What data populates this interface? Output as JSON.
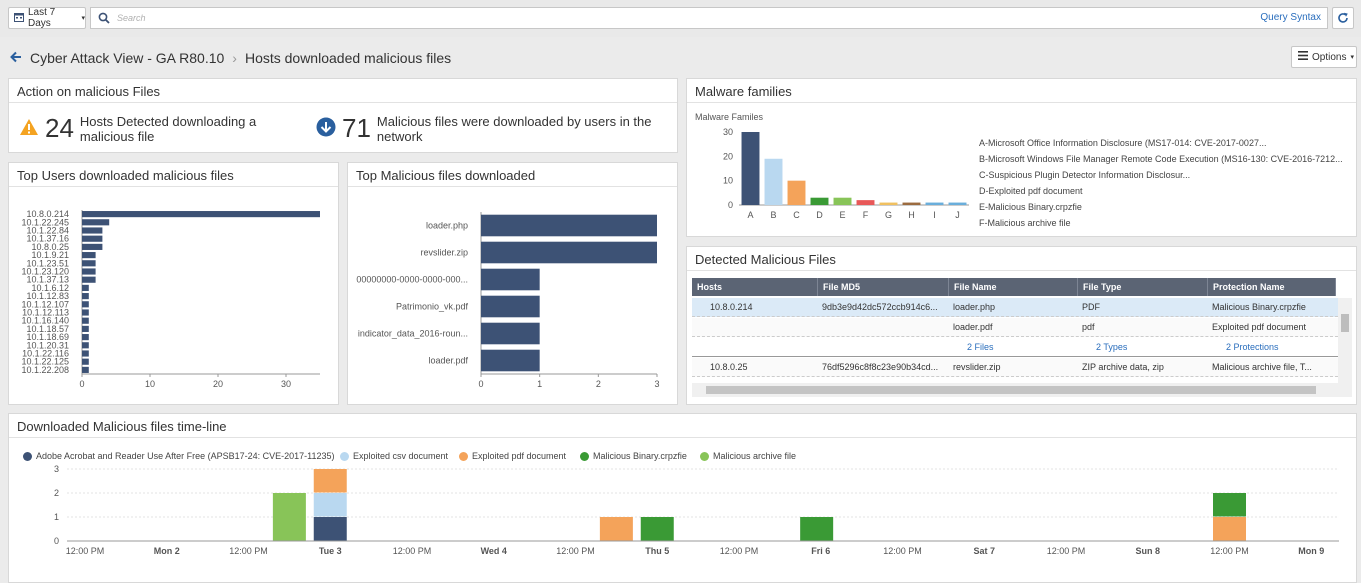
{
  "toolbar": {
    "range_label": "Last 7 Days",
    "search_placeholder": "Search",
    "query_syntax": "Query Syntax"
  },
  "breadcrumb": {
    "parent": "Cyber Attack View - GA R80.10",
    "current": "Hosts downloaded malicious files",
    "options_label": "Options"
  },
  "action_panel": {
    "title": "Action on malicious Files",
    "hosts_count": "24",
    "hosts_text": "Hosts Detected downloading a malicious file",
    "files_count": "71",
    "files_text": "Malicious files were downloaded by users in the network"
  },
  "top_users": {
    "title": "Top Users downloaded malicious files",
    "chart_data": {
      "type": "bar",
      "orientation": "horizontal",
      "categories": [
        "10.8.0.214",
        "10.1.22.245",
        "10.1.22.84",
        "10.1.37.16",
        "10.8.0.25",
        "10.1.9.21",
        "10.1.23.51",
        "10.1.23.120",
        "10.1.37.13",
        "10.1.6.12",
        "10.1.12.83",
        "10.1.12.107",
        "10.1.12.113",
        "10.1.16.140",
        "10.1.18.57",
        "10.1.18.69",
        "10.1.20.31",
        "10.1.22.116",
        "10.1.22.125",
        "10.1.22.208"
      ],
      "values": [
        35,
        4,
        3,
        3,
        3,
        2,
        2,
        2,
        2,
        1,
        1,
        1,
        1,
        1,
        1,
        1,
        1,
        1,
        1,
        1
      ],
      "xlim": [
        0,
        35
      ],
      "xticks": [
        0,
        10,
        20,
        30
      ],
      "color": "#3d5275"
    }
  },
  "top_files": {
    "title": "Top Malicious files downloaded",
    "chart_data": {
      "type": "bar",
      "orientation": "horizontal",
      "categories": [
        "loader.php",
        "revslider.zip",
        "00000000-0000-0000-000...",
        "Patrimonio_vk.pdf",
        "indicator_data_2016-roun...",
        "loader.pdf"
      ],
      "values": [
        3,
        3,
        1,
        1,
        1,
        1
      ],
      "xlim": [
        0,
        3
      ],
      "xticks": [
        0,
        1,
        2,
        3
      ],
      "color": "#3d5275"
    }
  },
  "malware_families": {
    "title": "Malware families",
    "chart_data": {
      "type": "bar",
      "title": "Malware Familes",
      "categories": [
        "A",
        "B",
        "C",
        "D",
        "E",
        "F",
        "G",
        "H",
        "I",
        "J"
      ],
      "values": [
        30,
        19,
        10,
        3,
        3,
        2,
        1,
        1,
        1,
        1
      ],
      "colors": [
        "#3d5275",
        "#b9d8f0",
        "#f4a35a",
        "#3a9a35",
        "#88c458",
        "#e85858",
        "#f0c060",
        "#9b6b3f",
        "#6aaedb",
        "#6aaedb"
      ],
      "ylim": [
        0,
        30
      ],
      "yticks": [
        0,
        10,
        20,
        30
      ]
    },
    "legend": [
      "A-Microsoft Office Information Disclosure (MS17-014: CVE-2017-0027...",
      "B-Microsoft Windows File Manager Remote Code Execution (MS16-130: CVE-2016-7212...",
      "C-Suspicious Plugin Detector Information Disclosur...",
      "D-Exploited pdf document",
      "E-Malicious Binary.crpzfie",
      "F-Malicious archive file"
    ]
  },
  "detected_files": {
    "title": "Detected Malicious Files",
    "columns": [
      "Hosts",
      "File MD5",
      "File Name",
      "File Type",
      "Protection Name"
    ],
    "rows": [
      {
        "host": "10.8.0.214",
        "md5": "9db3e9d42dc572ccb914c6...",
        "name": "loader.php",
        "type": "PDF",
        "protection": "Malicious Binary.crpzfie"
      },
      {
        "host": "",
        "md5": "",
        "name": "loader.pdf",
        "type": "pdf",
        "protection": "Exploited pdf document"
      },
      {
        "host": "",
        "md5": "",
        "name": "2 Files",
        "type": "2 Types",
        "protection": "2 Protections"
      },
      {
        "host": "10.8.0.25",
        "md5": "76df5296c8f8c23e90b34cd...",
        "name": "revslider.zip",
        "type": "ZIP archive data, zip",
        "protection": "Malicious archive file, T..."
      }
    ]
  },
  "timeline": {
    "title": "Downloaded Malicious files time-line",
    "chart_data": {
      "type": "bar",
      "stacked": true,
      "ylim": [
        0,
        3
      ],
      "yticks": [
        0,
        1,
        2,
        3
      ],
      "x_labels": [
        "12:00 PM",
        "Mon 2",
        "12:00 PM",
        "Tue 3",
        "12:00 PM",
        "Wed 4",
        "12:00 PM",
        "Thu 5",
        "12:00 PM",
        "Fri 6",
        "12:00 PM",
        "Sat 7",
        "12:00 PM",
        "Sun 8",
        "12:00 PM",
        "Mon 9"
      ],
      "series": [
        {
          "name": "Adobe Acrobat and Reader Use After Free (APSB17-24: CVE-2017-11235)",
          "color": "#3d5275"
        },
        {
          "name": "Exploited csv document",
          "color": "#b9d8f0"
        },
        {
          "name": "Exploited pdf document",
          "color": "#f4a35a"
        },
        {
          "name": "Malicious Binary.crpzfie",
          "color": "#3a9a35"
        },
        {
          "name": "Malicious archive file",
          "color": "#88c458"
        }
      ],
      "bars": [
        {
          "x_index": 2.5,
          "segments": [
            {
              "series": 4,
              "value": 2
            }
          ]
        },
        {
          "x_index": 3,
          "segments": [
            {
              "series": 0,
              "value": 1
            },
            {
              "series": 1,
              "value": 1
            },
            {
              "series": 2,
              "value": 1
            }
          ]
        },
        {
          "x_index": 6.5,
          "segments": [
            {
              "series": 2,
              "value": 1
            }
          ]
        },
        {
          "x_index": 7,
          "segments": [
            {
              "series": 3,
              "value": 1
            }
          ]
        },
        {
          "x_index": 8.95,
          "segments": [
            {
              "series": 3,
              "value": 1
            }
          ]
        },
        {
          "x_index": 14,
          "segments": [
            {
              "series": 2,
              "value": 1
            },
            {
              "series": 3,
              "value": 1
            }
          ]
        }
      ]
    }
  }
}
